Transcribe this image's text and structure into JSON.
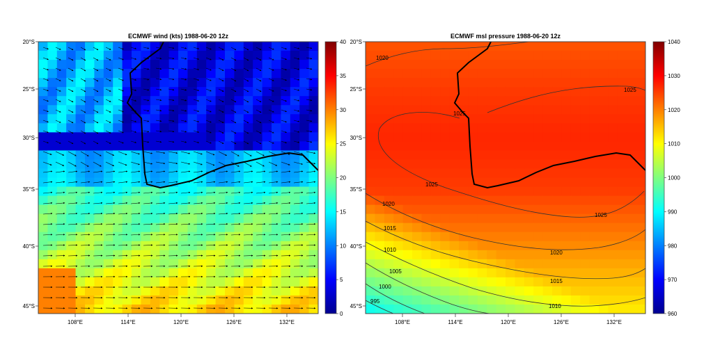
{
  "left_panel": {
    "title": "ECMWF wind (kts)  1988-06-20 12z",
    "colorbar_ticks": [
      "0",
      "5",
      "10",
      "15",
      "20",
      "25",
      "30",
      "35",
      "40"
    ],
    "colorbar_range": [
      0,
      40
    ]
  },
  "right_panel": {
    "title": "ECMWF msl pressure  1988-06-20 12z",
    "colorbar_ticks": [
      "960",
      "970",
      "980",
      "990",
      "1000",
      "1010",
      "1020",
      "1030",
      "1040"
    ],
    "colorbar_range": [
      960,
      1040
    ],
    "contour_labels": [
      "1020",
      "1025",
      "1025",
      "1025",
      "1025",
      "1020",
      "1020",
      "1015",
      "1015",
      "1010",
      "1010",
      "1005",
      "1000",
      "995"
    ]
  },
  "lat_labels": [
    "20°S",
    "25°S",
    "30°S",
    "35°S",
    "40°S",
    "45°S"
  ],
  "lon_labels": [
    "108°E",
    "114°E",
    "120°E",
    "126°E",
    "132°E"
  ],
  "colors": {
    "coastline": "#000000",
    "contour": "#333333"
  }
}
